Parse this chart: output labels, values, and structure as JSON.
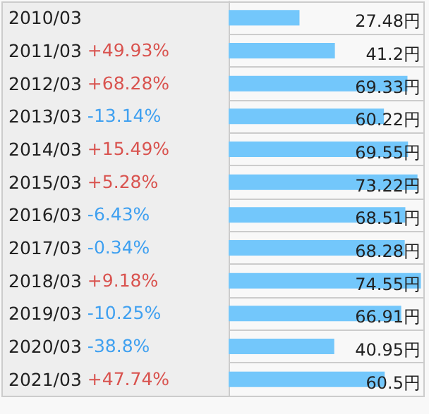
{
  "chart_data": {
    "type": "bar",
    "orientation": "horizontal",
    "categories": [
      "2010/03",
      "2011/03",
      "2012/03",
      "2013/03",
      "2014/03",
      "2015/03",
      "2016/03",
      "2017/03",
      "2018/03",
      "2019/03",
      "2020/03",
      "2021/03"
    ],
    "values": [
      27.48,
      41.2,
      69.33,
      60.22,
      69.55,
      73.22,
      68.51,
      68.28,
      74.55,
      66.91,
      40.95,
      60.5
    ],
    "value_labels": [
      "27.48円",
      "41.2円",
      "69.33円",
      "60.22円",
      "69.55円",
      "73.22円",
      "68.51円",
      "68.28円",
      "74.55円",
      "66.91円",
      "40.95円",
      "60.5円"
    ],
    "color": "#73c7fb",
    "grid": "y",
    "annotations": [
      "+49.93%",
      "+68.28%",
      "-13.14%",
      "+15.49%",
      "+5.28%",
      "-6.43%",
      "-0.34%",
      "+9.18%",
      "-10.25%",
      "-38.8%",
      "+47.74%"
    ]
  }
}
